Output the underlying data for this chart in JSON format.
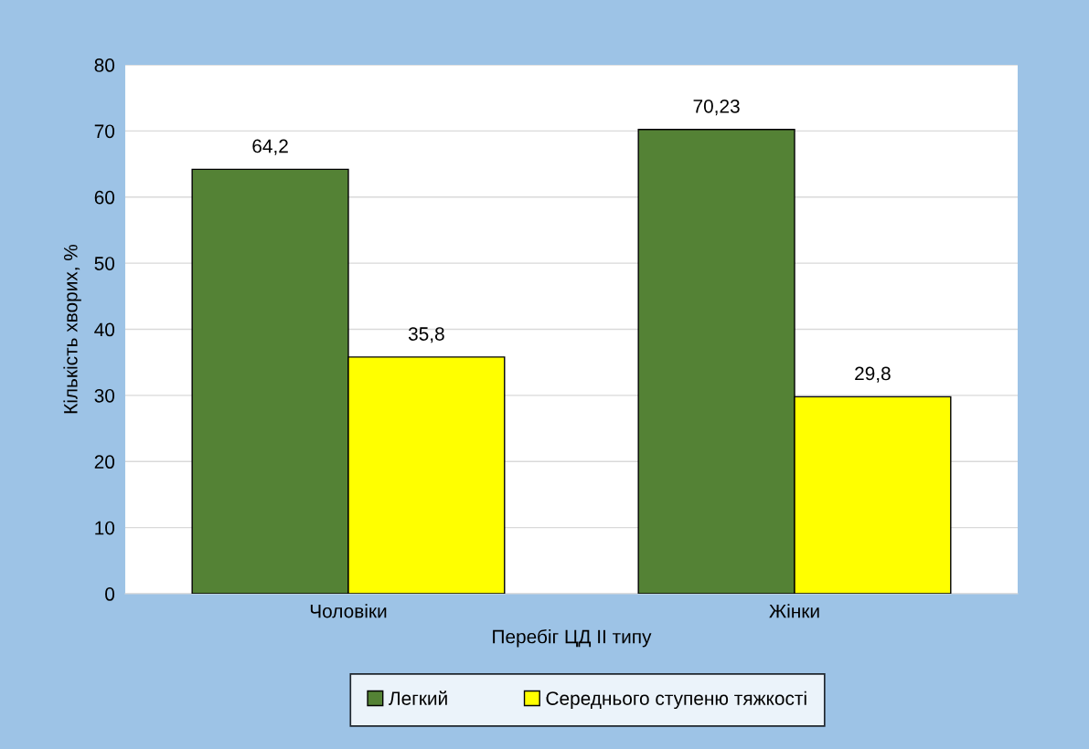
{
  "chart_data": {
    "type": "bar",
    "xlabel": "Перебіг ЦД ІІ типу",
    "ylabel": "Кількість хворих, %",
    "categories": [
      "Чоловіки",
      "Жінки"
    ],
    "series": [
      {
        "name": "Легкий",
        "color": "#548235",
        "values": [
          64.2,
          70.23
        ],
        "value_labels": [
          "64,2",
          "70,23"
        ]
      },
      {
        "name": "Середнього ступеню тяжкості",
        "color": "#ffff00",
        "values": [
          35.8,
          29.8
        ],
        "value_labels": [
          "35,8",
          "29,8"
        ]
      }
    ],
    "ylim": [
      0,
      80
    ],
    "yticks": [
      0,
      10,
      20,
      30,
      40,
      50,
      60,
      70,
      80
    ],
    "grid": "y",
    "legend": "bottom"
  }
}
